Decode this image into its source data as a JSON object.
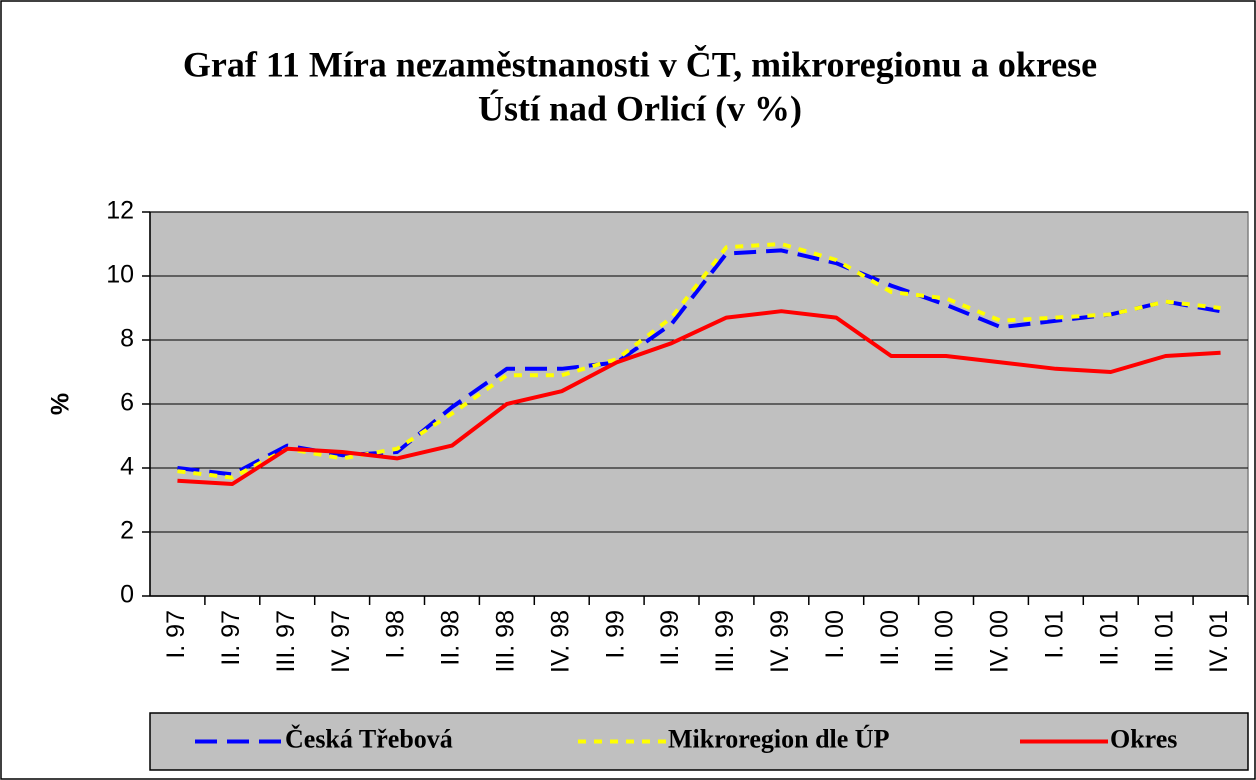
{
  "chart_data": {
    "type": "line",
    "title": [
      "Graf 11 Míra nezaměstnanosti v ČT, mikroregionu a okrese",
      "Ústí nad Orlicí (v %)"
    ],
    "y_label": "%",
    "categories": [
      "I. 97",
      "II. 97",
      "III. 97",
      "IV. 97",
      "I. 98",
      "II. 98",
      "III. 98",
      "IV. 98",
      "I. 99",
      "II. 99",
      "III. 99",
      "IV. 99",
      "I. 00",
      "II. 00",
      "III. 00",
      "IV. 00",
      "I. 01",
      "II. 01",
      "III. 01",
      "IV. 01"
    ],
    "series": [
      {
        "name": "Česká Třebová",
        "color": "#0000ff",
        "dash": "22 10",
        "values": [
          4.0,
          3.8,
          4.7,
          4.4,
          4.5,
          5.9,
          7.1,
          7.1,
          7.3,
          8.5,
          10.7,
          10.8,
          10.4,
          9.7,
          9.1,
          8.4,
          8.6,
          8.8,
          9.2,
          8.9
        ]
      },
      {
        "name": "Mikroregion dle ÚP",
        "color": "#ffff00",
        "dash": "8 8",
        "values": [
          3.9,
          3.7,
          4.6,
          4.3,
          4.6,
          5.7,
          6.9,
          6.9,
          7.4,
          8.7,
          10.9,
          11.0,
          10.5,
          9.5,
          9.3,
          8.6,
          8.7,
          8.8,
          9.2,
          9.0
        ]
      },
      {
        "name": "Okres",
        "color": "#ff0000",
        "dash": "none",
        "values": [
          3.6,
          3.5,
          4.6,
          4.5,
          4.3,
          4.7,
          6.0,
          6.4,
          7.3,
          7.9,
          8.7,
          8.9,
          8.7,
          7.5,
          7.5,
          7.3,
          7.1,
          7.0,
          7.5,
          7.6
        ]
      }
    ],
    "ylim": [
      0,
      12
    ],
    "yticks": [
      0,
      2,
      4,
      6,
      8,
      10,
      12
    ],
    "grid": true,
    "legend": "bottom",
    "plot_background": "#c0c0c0"
  }
}
